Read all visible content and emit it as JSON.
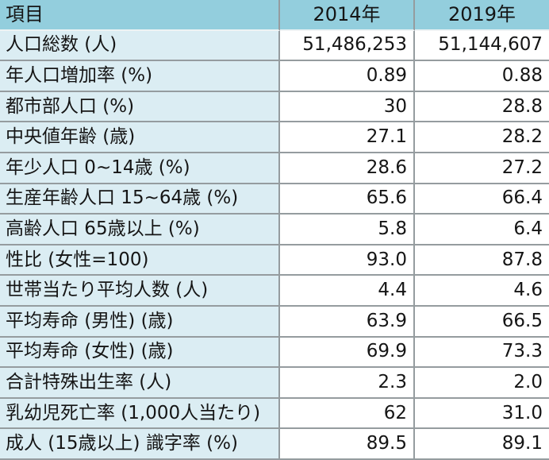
{
  "colors": {
    "header_bg": "#93CEDD",
    "label_bg": "#DBEDF3",
    "row_bg": "#FFFFFF",
    "border": "#959C9F",
    "header_line": "#EEF3F4",
    "text": "#151515"
  },
  "chart_data": {
    "type": "table",
    "columns": [
      "項目",
      "2014年",
      "2019年"
    ],
    "rows": [
      [
        "人口総数 (人)",
        "51,486,253",
        "51,144,607"
      ],
      [
        "年人口増加率 (%)",
        "0.89",
        "0.88"
      ],
      [
        "都市部人口 (%)",
        "30",
        "28.8"
      ],
      [
        "中央値年齢 (歳)",
        "27.1",
        "28.2"
      ],
      [
        "年少人口 0~14歳 (%)",
        "28.6",
        "27.2"
      ],
      [
        "生産年齢人口 15~64歳 (%)",
        "65.6",
        "66.4"
      ],
      [
        "高齢人口 65歳以上 (%)",
        "5.8",
        "6.4"
      ],
      [
        "性比 (女性=100)",
        "93.0",
        "87.8"
      ],
      [
        "世帯当たり平均人数 (人)",
        "4.4",
        "4.6"
      ],
      [
        "平均寿命 (男性) (歳)",
        "63.9",
        "66.5"
      ],
      [
        "平均寿命 (女性) (歳)",
        "69.9",
        "73.3"
      ],
      [
        "合計特殊出生率 (人)",
        "2.3",
        "2.0"
      ],
      [
        "乳幼児死亡率 (1,000人当たり)",
        "62",
        "31.0"
      ],
      [
        "成人 (15歳以上) 識字率 (%)",
        "89.5",
        "89.1"
      ]
    ]
  }
}
